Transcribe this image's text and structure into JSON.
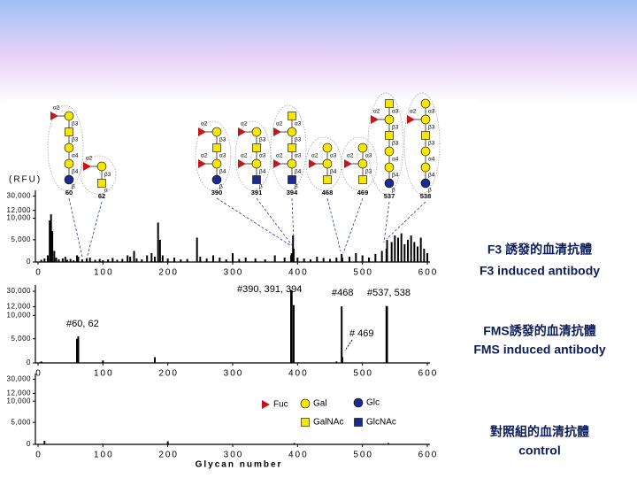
{
  "chart_data": [
    {
      "type": "bar",
      "y_label": "(RFU)",
      "color": "#000000",
      "x": [
        5,
        10,
        15,
        18,
        20,
        22,
        25,
        28,
        32,
        38,
        42,
        45,
        50,
        55,
        60,
        62,
        68,
        75,
        80,
        88,
        95,
        100,
        108,
        115,
        122,
        130,
        138,
        142,
        148,
        152,
        160,
        168,
        175,
        180,
        185,
        188,
        192,
        200,
        210,
        220,
        230,
        245,
        250,
        260,
        270,
        280,
        290,
        300,
        310,
        320,
        335,
        350,
        365,
        380,
        390,
        391,
        393,
        394,
        400,
        410,
        420,
        430,
        440,
        450,
        460,
        468,
        469,
        480,
        490,
        500,
        510,
        520,
        530,
        537,
        538,
        545,
        550,
        555,
        560,
        565,
        570,
        575,
        580,
        585,
        590,
        595,
        600
      ],
      "values": [
        500,
        800,
        1500,
        9500,
        11000,
        7000,
        2500,
        1000,
        600,
        800,
        1200,
        500,
        700,
        400,
        1500,
        1200,
        600,
        800,
        1000,
        500,
        700,
        400,
        600,
        900,
        500,
        700,
        1500,
        1200,
        2500,
        800,
        600,
        1500,
        2000,
        1200,
        9000,
        5000,
        1500,
        800,
        1000,
        600,
        700,
        5500,
        1200,
        800,
        1500,
        1000,
        600,
        2000,
        700,
        1000,
        800,
        600,
        1500,
        1000,
        1500,
        2000,
        6000,
        3000,
        1000,
        800,
        600,
        1200,
        900,
        700,
        1000,
        1800,
        1000,
        1200,
        2000,
        1500,
        1000,
        1800,
        2500,
        3000,
        5000,
        4500,
        6000,
        5500,
        6500,
        4000,
        5000,
        6000,
        4500,
        3500,
        5500,
        3000,
        2000
      ],
      "xlim": [
        0,
        600
      ],
      "xticks": [
        0,
        100,
        200,
        300,
        400,
        500,
        600
      ],
      "ylim": [
        0,
        35000
      ],
      "yticks": [
        0,
        {
          "value": 5000,
          "label": "5,000"
        },
        {
          "value": 10000,
          "label": "10,000"
        },
        {
          "value": 12000,
          "label": "12,000"
        },
        {
          "value": 30000,
          "label": "30,000"
        }
      ]
    },
    {
      "type": "bar",
      "color": "#000000",
      "x": [
        5,
        60,
        62,
        100,
        180,
        390,
        391,
        394,
        460,
        468,
        469,
        537,
        538
      ],
      "values": [
        300,
        5000,
        5500,
        500,
        1200,
        31000,
        30000,
        14000,
        300,
        12500,
        1200,
        13000,
        12500
      ],
      "xlim": [
        0,
        600
      ],
      "xticks": [
        0,
        100,
        200,
        300,
        400,
        500,
        600
      ],
      "ylim": [
        0,
        35000
      ],
      "yticks": [
        0,
        {
          "value": 5000,
          "label": "5,000"
        },
        {
          "value": 10000,
          "label": "10,000"
        },
        {
          "value": 12000,
          "label": "12,000"
        },
        {
          "value": 30000,
          "label": "30,000"
        }
      ],
      "annotations": [
        "#390, 391, 394",
        "#468",
        "#537, 538",
        "#60, 62",
        "# 469"
      ]
    },
    {
      "type": "bar",
      "x_label": "Glycan number",
      "color": "#000000",
      "x": [
        10,
        100,
        200,
        395,
        540
      ],
      "values": [
        800,
        150,
        700,
        300,
        300
      ],
      "xlim": [
        0,
        600
      ],
      "xticks": [
        0,
        100,
        200,
        300,
        400,
        500,
        600
      ],
      "ylim": [
        0,
        35000
      ],
      "yticks": [
        0,
        {
          "value": 5000,
          "label": "5,000"
        },
        {
          "value": 10000,
          "label": "10,000"
        },
        {
          "value": 12000,
          "label": "12,000"
        },
        {
          "value": 30000,
          "label": "30,000"
        }
      ]
    }
  ],
  "side_labels": [
    [
      "F3 誘發的血清抗體",
      "F3 induced antibody"
    ],
    [
      "FMS誘發的血清抗體",
      "FMS induced antibody"
    ],
    [
      "對照組的血清抗體",
      "control"
    ]
  ],
  "legend": [
    "Fuc",
    "Gal",
    "Glc",
    "GalNAc",
    "GlcNAc"
  ],
  "glycans": [
    {
      "number": "60",
      "chain": [
        [
          "Gal",
          "β3"
        ],
        [
          "GalNAc",
          "β3"
        ],
        [
          "Gal",
          "α4"
        ],
        [
          "Gal",
          "β4"
        ],
        [
          "Glc",
          "β"
        ]
      ],
      "fuc": [
        [
          0,
          "α2"
        ]
      ]
    },
    {
      "number": "62",
      "chain": [
        [
          "Gal",
          "β3"
        ],
        [
          "GalNAc",
          "α"
        ]
      ],
      "fuc": [
        [
          0,
          "α2"
        ]
      ]
    },
    {
      "number": "390",
      "chain": [
        [
          "Gal",
          "β3"
        ],
        [
          "GalNAc",
          "α3"
        ],
        [
          "Gal",
          "β4"
        ],
        [
          "Glc",
          "β"
        ]
      ],
      "fuc": [
        [
          0,
          "α2"
        ],
        [
          2,
          "α2"
        ]
      ]
    },
    {
      "number": "391",
      "chain": [
        [
          "Gal",
          "β3"
        ],
        [
          "GalNAc",
          "α3"
        ],
        [
          "Gal",
          "β4"
        ],
        [
          "GlcNAc",
          "β"
        ]
      ],
      "fuc": [
        [
          0,
          "α2"
        ],
        [
          2,
          "α2"
        ]
      ]
    },
    {
      "number": "394",
      "chain": [
        [
          "GalNAc",
          "α3"
        ],
        [
          "Gal",
          "β3"
        ],
        [
          "GalNAc",
          "α3"
        ],
        [
          "Gal",
          "β4"
        ],
        [
          "GlcNAc",
          "β"
        ]
      ],
      "fuc": [
        [
          1,
          "α2"
        ],
        [
          3,
          "α2"
        ]
      ]
    },
    {
      "number": "468",
      "chain": [
        [
          "Gal",
          "α3"
        ],
        [
          "Gal",
          "β4"
        ],
        [
          "GalNAc",
          ""
        ]
      ],
      "fuc": [
        [
          1,
          "α2"
        ]
      ]
    },
    {
      "number": "469",
      "chain": [
        [
          "Gal",
          "α3"
        ],
        [
          "Gal",
          "β3"
        ],
        [
          "GalNAc",
          ""
        ]
      ],
      "fuc": [
        [
          1,
          "α2"
        ]
      ]
    },
    {
      "number": "537",
      "chain": [
        [
          "GalNAc",
          "α3"
        ],
        [
          "Gal",
          "β3"
        ],
        [
          "GalNAc",
          "β3"
        ],
        [
          "Gal",
          "α4"
        ],
        [
          "Gal",
          "β4"
        ],
        [
          "Glc",
          "β"
        ]
      ],
      "fuc": [
        [
          1,
          "α2"
        ]
      ]
    },
    {
      "number": "538",
      "chain": [
        [
          "Gal",
          "α3"
        ],
        [
          "Gal",
          "β3"
        ],
        [
          "GalNAc",
          "β3"
        ],
        [
          "Gal",
          "α4"
        ],
        [
          "Gal",
          "β4"
        ],
        [
          "Glc",
          "β"
        ]
      ],
      "fuc": [
        [
          1,
          "α2"
        ]
      ]
    }
  ]
}
